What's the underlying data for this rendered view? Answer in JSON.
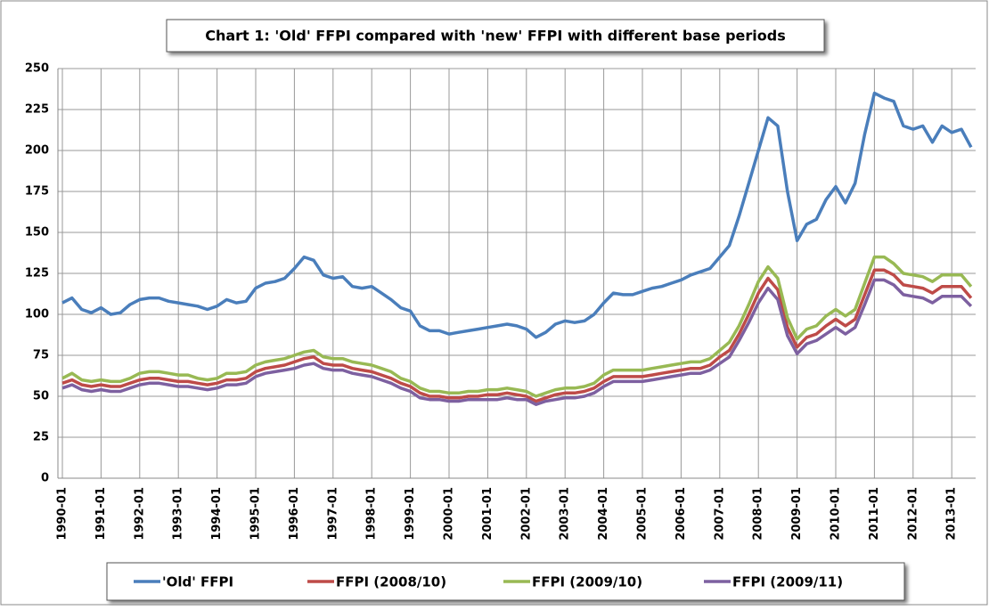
{
  "chart_data": {
    "type": "line",
    "title": "Chart  1:  'Old' FFPI compared with 'new' FFPI with different base periods",
    "categories": [
      "1990-01",
      null,
      null,
      null,
      "1991-01",
      null,
      null,
      null,
      "1992-01",
      null,
      null,
      null,
      "1993-01",
      null,
      null,
      null,
      "1994-01",
      null,
      null,
      null,
      "1995-01",
      null,
      null,
      null,
      "1996-01",
      null,
      null,
      null,
      "1997-01",
      null,
      null,
      null,
      "1998-01",
      null,
      null,
      null,
      "1999-01",
      null,
      null,
      null,
      "2000-01",
      null,
      null,
      null,
      "2001-01",
      null,
      null,
      null,
      "2002-01",
      null,
      null,
      null,
      "2003-01",
      null,
      null,
      null,
      "2004-01",
      null,
      null,
      null,
      "2005-01",
      null,
      null,
      null,
      "2006-01",
      null,
      null,
      null,
      "2007-01",
      null,
      null,
      null,
      "2008-01",
      null,
      null,
      null,
      "2009-01",
      null,
      null,
      null,
      "2010-01",
      null,
      null,
      null,
      "2011-01",
      null,
      null,
      null,
      "2012-01",
      null,
      null,
      null,
      "2013-01",
      null,
      null
    ],
    "series": [
      {
        "name": "'Old' FFPI",
        "color": "#4a7ebb",
        "values": [
          107,
          110,
          103,
          101,
          104,
          100,
          101,
          106,
          109,
          110,
          110,
          108,
          107,
          106,
          105,
          103,
          105,
          109,
          107,
          108,
          116,
          119,
          120,
          122,
          128,
          135,
          133,
          124,
          122,
          123,
          117,
          116,
          117,
          113,
          109,
          104,
          102,
          93,
          90,
          90,
          88,
          89,
          90,
          91,
          92,
          93,
          94,
          93,
          91,
          86,
          89,
          94,
          96,
          95,
          96,
          100,
          107,
          113,
          112,
          112,
          114,
          116,
          117,
          119,
          121,
          124,
          126,
          128,
          135,
          142,
          160,
          180,
          200,
          220,
          215,
          175,
          145,
          155,
          158,
          170,
          178,
          168,
          180,
          210,
          235,
          232,
          230,
          215,
          213,
          215,
          205,
          215,
          211,
          213,
          202
        ]
      },
      {
        "name": "FFPI (2008/10)",
        "color": "#be4b48",
        "values": [
          58,
          60,
          57,
          56,
          57,
          56,
          56,
          58,
          60,
          61,
          61,
          60,
          59,
          59,
          58,
          57,
          58,
          60,
          60,
          61,
          65,
          67,
          68,
          69,
          71,
          73,
          74,
          70,
          69,
          69,
          67,
          66,
          65,
          63,
          61,
          58,
          56,
          52,
          50,
          50,
          49,
          49,
          50,
          50,
          51,
          51,
          52,
          51,
          50,
          47,
          49,
          51,
          52,
          52,
          53,
          55,
          59,
          62,
          62,
          62,
          62,
          63,
          64,
          65,
          66,
          67,
          67,
          69,
          74,
          78,
          88,
          100,
          113,
          122,
          115,
          92,
          80,
          86,
          88,
          93,
          97,
          93,
          97,
          112,
          127,
          127,
          124,
          118,
          117,
          116,
          113,
          117,
          117,
          117,
          110
        ]
      },
      {
        "name": "FFPI (2009/10)",
        "color": "#98b954",
        "values": [
          61,
          64,
          60,
          59,
          60,
          59,
          59,
          61,
          64,
          65,
          65,
          64,
          63,
          63,
          61,
          60,
          61,
          64,
          64,
          65,
          69,
          71,
          72,
          73,
          75,
          77,
          78,
          74,
          73,
          73,
          71,
          70,
          69,
          67,
          65,
          61,
          59,
          55,
          53,
          53,
          52,
          52,
          53,
          53,
          54,
          54,
          55,
          54,
          53,
          50,
          52,
          54,
          55,
          55,
          56,
          58,
          63,
          66,
          66,
          66,
          66,
          67,
          68,
          69,
          70,
          71,
          71,
          73,
          78,
          83,
          93,
          106,
          120,
          129,
          122,
          98,
          85,
          91,
          93,
          99,
          103,
          99,
          103,
          119,
          135,
          135,
          131,
          125,
          124,
          123,
          120,
          124,
          124,
          124,
          117
        ]
      },
      {
        "name": "FFPI (2009/11)",
        "color": "#7d60a0",
        "values": [
          55,
          57,
          54,
          53,
          54,
          53,
          53,
          55,
          57,
          58,
          58,
          57,
          56,
          56,
          55,
          54,
          55,
          57,
          57,
          58,
          62,
          64,
          65,
          66,
          67,
          69,
          70,
          67,
          66,
          66,
          64,
          63,
          62,
          60,
          58,
          55,
          53,
          49,
          48,
          48,
          47,
          47,
          48,
          48,
          48,
          48,
          49,
          48,
          48,
          45,
          47,
          48,
          49,
          49,
          50,
          52,
          56,
          59,
          59,
          59,
          59,
          60,
          61,
          62,
          63,
          64,
          64,
          66,
          70,
          74,
          84,
          95,
          107,
          116,
          109,
          87,
          76,
          82,
          84,
          88,
          92,
          88,
          92,
          106,
          121,
          121,
          118,
          112,
          111,
          110,
          107,
          111,
          111,
          111,
          105
        ]
      }
    ],
    "ylim": [
      0,
      250
    ],
    "yticks": [
      0,
      25,
      50,
      75,
      100,
      125,
      150,
      175,
      200,
      225,
      250
    ],
    "grid": true
  }
}
